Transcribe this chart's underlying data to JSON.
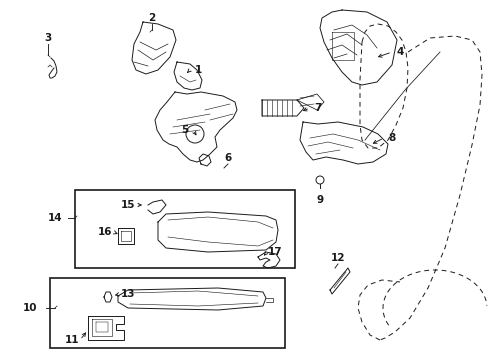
{
  "background_color": "#ffffff",
  "line_color": "#1a1a1a",
  "fig_width": 4.89,
  "fig_height": 3.6,
  "dpi": 100,
  "label_fontsize": 7.5,
  "lw": 0.7
}
